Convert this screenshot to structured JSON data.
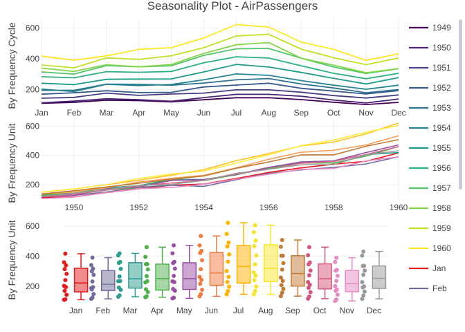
{
  "chart_data": [
    {
      "type": "line",
      "title": "Seasonality Plot - AirPassengers",
      "ylabel": "By Frequency Cycle",
      "categories": [
        "Jan",
        "Feb",
        "Mar",
        "Apr",
        "May",
        "Jun",
        "Jul",
        "Aug",
        "Sep",
        "Oct",
        "Nov",
        "Dec"
      ],
      "ylim": [
        100,
        660
      ],
      "yticks": [
        200,
        400,
        600
      ],
      "grid": true,
      "legend_position": "right",
      "series": [
        {
          "name": "1949",
          "color": "#440154",
          "values": [
            112,
            118,
            132,
            129,
            121,
            135,
            148,
            148,
            136,
            119,
            104,
            118
          ]
        },
        {
          "name": "1950",
          "color": "#482173",
          "values": [
            115,
            126,
            141,
            135,
            125,
            149,
            170,
            170,
            158,
            133,
            114,
            140
          ]
        },
        {
          "name": "1951",
          "color": "#433e85",
          "values": [
            145,
            150,
            178,
            163,
            172,
            178,
            199,
            199,
            184,
            162,
            146,
            166
          ]
        },
        {
          "name": "1952",
          "color": "#38598c",
          "values": [
            171,
            180,
            193,
            181,
            183,
            218,
            230,
            242,
            209,
            191,
            172,
            194
          ]
        },
        {
          "name": "1953",
          "color": "#2d708e",
          "values": [
            196,
            196,
            236,
            235,
            229,
            243,
            264,
            272,
            237,
            211,
            180,
            201
          ]
        },
        {
          "name": "1954",
          "color": "#25858e",
          "values": [
            204,
            188,
            235,
            227,
            234,
            264,
            302,
            293,
            259,
            229,
            203,
            229
          ]
        },
        {
          "name": "1955",
          "color": "#1e9b8a",
          "values": [
            242,
            233,
            267,
            269,
            270,
            315,
            364,
            347,
            312,
            274,
            237,
            278
          ]
        },
        {
          "name": "1956",
          "color": "#2ab07f",
          "values": [
            284,
            277,
            317,
            313,
            318,
            374,
            413,
            405,
            355,
            306,
            271,
            306
          ]
        },
        {
          "name": "1957",
          "color": "#52c569",
          "values": [
            315,
            301,
            356,
            348,
            355,
            422,
            465,
            467,
            404,
            347,
            305,
            336
          ]
        },
        {
          "name": "1958",
          "color": "#86d549",
          "values": [
            340,
            318,
            362,
            348,
            363,
            435,
            491,
            505,
            404,
            359,
            310,
            337
          ]
        },
        {
          "name": "1959",
          "color": "#c2df23",
          "values": [
            360,
            342,
            406,
            396,
            420,
            472,
            548,
            559,
            463,
            407,
            362,
            405
          ]
        },
        {
          "name": "1960",
          "color": "#fde725",
          "values": [
            417,
            391,
            419,
            461,
            472,
            535,
            622,
            606,
            508,
            461,
            390,
            432
          ]
        }
      ]
    },
    {
      "type": "line",
      "ylabel": "By Frequency Unit",
      "x_range": [
        1949,
        1960
      ],
      "xticks": [
        1950,
        1952,
        1954,
        1956,
        1958,
        1960
      ],
      "xtick_labels": [
        "1950",
        "1952",
        "1954",
        "1956",
        "1958",
        "1960"
      ],
      "ylim": [
        100,
        650
      ],
      "yticks": [
        200,
        400,
        600
      ],
      "grid": true,
      "series_by": "month",
      "month_colors": [
        "#e41a1c",
        "#6d6c9a",
        "#2a9d8f",
        "#4daf4a",
        "#984ea3",
        "#f5a05a",
        "#ffc125",
        "#ffeb3b",
        "#c17a32",
        "#d96a8a",
        "#e78ac3",
        "#999999"
      ]
    },
    {
      "type": "box",
      "ylabel": "By Frequency Unit",
      "categories": [
        "Jan",
        "Feb",
        "Mar",
        "Apr",
        "May",
        "Jun",
        "Jul",
        "Aug",
        "Sep",
        "Oct",
        "Nov",
        "Dec"
      ],
      "ylim": [
        100,
        650
      ],
      "yticks": [
        200,
        400,
        600
      ],
      "grid": true,
      "series": [
        {
          "name": "Jan",
          "color": "#e41a1c"
        },
        {
          "name": "Feb",
          "color": "#6d6c9a"
        },
        {
          "name": "Mar",
          "color": "#2a9d8f"
        },
        {
          "name": "Apr",
          "color": "#4daf4a"
        },
        {
          "name": "May",
          "color": "#984ea3"
        },
        {
          "name": "Jun",
          "color": "#f07b3f"
        },
        {
          "name": "Jul",
          "color": "#ffb300"
        },
        {
          "name": "Aug",
          "color": "#f5e52a"
        },
        {
          "name": "Sep",
          "color": "#c17a32"
        },
        {
          "name": "Oct",
          "color": "#d6567a"
        },
        {
          "name": "Nov",
          "color": "#e78ac3"
        },
        {
          "name": "Dec",
          "color": "#999999"
        }
      ]
    }
  ]
}
